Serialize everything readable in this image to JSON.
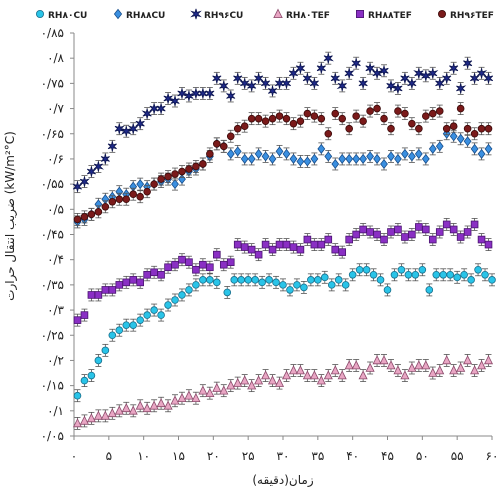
{
  "chart_data": {
    "type": "scatter",
    "xlabel": "زمان(دقیقه)",
    "ylabel": "ضریب انتقال حرارت (kW/m²°C)",
    "xlim": [
      0,
      60
    ],
    "ylim": [
      0.05,
      0.85
    ],
    "x_ticks": [
      0,
      5,
      10,
      15,
      20,
      25,
      30,
      35,
      40,
      45,
      50,
      55,
      60
    ],
    "x_tick_labels": [
      "۰",
      "۵",
      "۱۰",
      "۱۵",
      "۲۰",
      "۲۵",
      "۳۰",
      "۳۵",
      "۴۰",
      "۴۵",
      "۵۰",
      "۵۵",
      "۶۰"
    ],
    "y_ticks": [
      0.05,
      0.1,
      0.15,
      0.2,
      0.25,
      0.3,
      0.35,
      0.4,
      0.45,
      0.5,
      0.55,
      0.6,
      0.65,
      0.7,
      0.75,
      0.8,
      0.85
    ],
    "y_tick_labels": [
      "۰/۰۵",
      "۰/۱",
      "۰/۱۵",
      "۰/۲",
      "۰/۲۵",
      "۰/۳",
      "۰/۳۵",
      "۰/۴",
      "۰/۴۵",
      "۰/۵",
      "۰/۵۵",
      "۰/۶",
      "۰/۶۵",
      "۰/۷",
      "۰/۷۵",
      "۰/۸",
      "۰/۸۵"
    ],
    "legend_position": "top",
    "grid": false,
    "error_bars": true,
    "series": [
      {
        "name": "RH۸۰CU",
        "marker": "circle",
        "color": "#29c4e8",
        "stroke": "#1a6f8c",
        "x": [
          0.5,
          1.5,
          2.5,
          3.5,
          4.5,
          5.5,
          6.5,
          7.5,
          8.5,
          9.5,
          10.5,
          11.5,
          12.5,
          13.5,
          14.5,
          15.5,
          16.5,
          17.5,
          18.5,
          19.5,
          20.5,
          22,
          23,
          24,
          25,
          26,
          27,
          28,
          29,
          30,
          31,
          32,
          33,
          34,
          35,
          36,
          37,
          38,
          39,
          40,
          41,
          42,
          43,
          44,
          45,
          46,
          47,
          48,
          49,
          50,
          51,
          52,
          53,
          54,
          55,
          56,
          57,
          58,
          59,
          60
        ],
        "y": [
          0.13,
          0.16,
          0.17,
          0.2,
          0.22,
          0.25,
          0.26,
          0.27,
          0.27,
          0.28,
          0.29,
          0.3,
          0.29,
          0.31,
          0.32,
          0.33,
          0.34,
          0.35,
          0.36,
          0.36,
          0.355,
          0.335,
          0.36,
          0.36,
          0.36,
          0.36,
          0.355,
          0.36,
          0.355,
          0.35,
          0.34,
          0.35,
          0.345,
          0.36,
          0.36,
          0.365,
          0.35,
          0.36,
          0.35,
          0.37,
          0.38,
          0.38,
          0.37,
          0.36,
          0.34,
          0.37,
          0.38,
          0.37,
          0.37,
          0.38,
          0.34,
          0.37,
          0.37,
          0.37,
          0.365,
          0.37,
          0.36,
          0.38,
          0.37,
          0.36
        ]
      },
      {
        "name": "RH۸۸CU",
        "marker": "diamond",
        "color": "#3a8fe0",
        "stroke": "#1a4f8c",
        "x": [
          0.5,
          1.5,
          2.5,
          3.5,
          4.5,
          5.5,
          6.5,
          7.5,
          8.5,
          9.5,
          10.5,
          11.5,
          12.5,
          13.5,
          14.5,
          15.5,
          16.5,
          17.5,
          18.5,
          19.5,
          20.5,
          21.5,
          22.5,
          23.5,
          24.5,
          25.5,
          26.5,
          27.5,
          28.5,
          29.5,
          30.5,
          31.5,
          32.5,
          33.5,
          34.5,
          35.5,
          36.5,
          37.5,
          38.5,
          39.5,
          40.5,
          41.5,
          42.5,
          43.5,
          44.5,
          45.5,
          46.5,
          47.5,
          48.5,
          49.5,
          50.5,
          51.5,
          52.5,
          53.5,
          54.5,
          55.5,
          56.5,
          57.5,
          58.5,
          59.5
        ],
        "y": [
          0.475,
          0.48,
          0.49,
          0.51,
          0.52,
          0.525,
          0.535,
          0.53,
          0.545,
          0.55,
          0.545,
          0.55,
          0.555,
          0.56,
          0.55,
          0.56,
          0.575,
          0.58,
          0.59,
          0.605,
          0.63,
          0.625,
          0.61,
          0.615,
          0.6,
          0.6,
          0.61,
          0.605,
          0.6,
          0.615,
          0.61,
          0.6,
          0.595,
          0.595,
          0.6,
          0.62,
          0.605,
          0.59,
          0.6,
          0.6,
          0.6,
          0.6,
          0.605,
          0.6,
          0.59,
          0.605,
          0.6,
          0.61,
          0.605,
          0.61,
          0.6,
          0.62,
          0.625,
          0.65,
          0.645,
          0.64,
          0.635,
          0.62,
          0.61,
          0.62
        ]
      },
      {
        "name": "RH۹۶CU",
        "marker": "star",
        "color": "#1f2a8a",
        "stroke": "#0d1550",
        "x": [
          0.5,
          1.5,
          2.5,
          3.5,
          4.5,
          5.5,
          6.5,
          7.5,
          8.5,
          9.5,
          10.5,
          11.5,
          12.5,
          13.5,
          14.5,
          15.5,
          16.5,
          17.5,
          18.5,
          19.5,
          20.5,
          21.5,
          22.5,
          23.5,
          24.5,
          25.5,
          26.5,
          27.5,
          28.5,
          29.5,
          30.5,
          31.5,
          32.5,
          33.5,
          34.5,
          35.5,
          36.5,
          37.5,
          38.5,
          39.5,
          40.5,
          41.5,
          42.5,
          43.5,
          44.5,
          45.5,
          46.5,
          47.5,
          48.5,
          49.5,
          50.5,
          51.5,
          52.5,
          53.5,
          54.5,
          55.5,
          56.5,
          57.5,
          58.5,
          59.5
        ],
        "y": [
          0.545,
          0.555,
          0.575,
          0.585,
          0.6,
          0.625,
          0.66,
          0.655,
          0.66,
          0.67,
          0.69,
          0.7,
          0.7,
          0.72,
          0.715,
          0.73,
          0.725,
          0.73,
          0.73,
          0.73,
          0.76,
          0.745,
          0.725,
          0.76,
          0.75,
          0.745,
          0.76,
          0.75,
          0.735,
          0.75,
          0.75,
          0.77,
          0.78,
          0.76,
          0.75,
          0.78,
          0.8,
          0.76,
          0.745,
          0.77,
          0.79,
          0.75,
          0.78,
          0.77,
          0.775,
          0.745,
          0.74,
          0.76,
          0.75,
          0.77,
          0.765,
          0.77,
          0.75,
          0.76,
          0.78,
          0.74,
          0.79,
          0.76,
          0.77,
          0.76
        ]
      },
      {
        "name": "RH۸۰TEF",
        "marker": "triangle",
        "color": "#e9a6c4",
        "stroke": "#8a4a6a",
        "x": [
          0.5,
          1.5,
          2.5,
          3.5,
          4.5,
          5.5,
          6.5,
          7.5,
          8.5,
          9.5,
          10.5,
          11.5,
          12.5,
          13.5,
          14.5,
          15.5,
          16.5,
          17.5,
          18.5,
          19.5,
          20.5,
          21.5,
          22.5,
          23.5,
          24.5,
          25.5,
          26.5,
          27.5,
          28.5,
          29.5,
          30.5,
          31.5,
          32.5,
          33.5,
          34.5,
          35.5,
          36.5,
          37.5,
          38.5,
          39.5,
          40.5,
          41.5,
          42.5,
          43.5,
          44.5,
          45.5,
          46.5,
          47.5,
          48.5,
          49.5,
          50.5,
          51.5,
          52.5,
          53.5,
          54.5,
          55.5,
          56.5,
          57.5,
          58.5,
          59.5
        ],
        "y": [
          0.075,
          0.08,
          0.085,
          0.09,
          0.09,
          0.095,
          0.1,
          0.105,
          0.1,
          0.11,
          0.105,
          0.11,
          0.115,
          0.11,
          0.12,
          0.125,
          0.13,
          0.125,
          0.14,
          0.135,
          0.145,
          0.14,
          0.15,
          0.155,
          0.16,
          0.15,
          0.16,
          0.17,
          0.16,
          0.155,
          0.17,
          0.18,
          0.18,
          0.17,
          0.17,
          0.16,
          0.17,
          0.18,
          0.17,
          0.19,
          0.19,
          0.17,
          0.185,
          0.2,
          0.2,
          0.19,
          0.18,
          0.17,
          0.185,
          0.19,
          0.19,
          0.175,
          0.18,
          0.2,
          0.18,
          0.185,
          0.2,
          0.18,
          0.19,
          0.2
        ]
      },
      {
        "name": "RH۸۸TEF",
        "marker": "square",
        "color": "#8a2fc4",
        "stroke": "#4a1570",
        "x": [
          0.5,
          1.5,
          2.5,
          3.5,
          4.5,
          5.5,
          6.5,
          7.5,
          8.5,
          9.5,
          10.5,
          11.5,
          12.5,
          13.5,
          14.5,
          15.5,
          16.5,
          17.5,
          18.5,
          19.5,
          20.5,
          21.5,
          22.5,
          23.5,
          24.5,
          25.5,
          26.5,
          27.5,
          28.5,
          29.5,
          30.5,
          31.5,
          32.5,
          33.5,
          34.5,
          35.5,
          36.5,
          37.5,
          38.5,
          39.5,
          40.5,
          41.5,
          42.5,
          43.5,
          44.5,
          45.5,
          46.5,
          47.5,
          48.5,
          49.5,
          50.5,
          51.5,
          52.5,
          53.5,
          54.5,
          55.5,
          56.5,
          57.5,
          58.5,
          59.5
        ],
        "y": [
          0.28,
          0.29,
          0.33,
          0.33,
          0.34,
          0.34,
          0.35,
          0.355,
          0.36,
          0.355,
          0.37,
          0.375,
          0.37,
          0.385,
          0.39,
          0.4,
          0.395,
          0.38,
          0.39,
          0.385,
          0.41,
          0.39,
          0.395,
          0.43,
          0.425,
          0.42,
          0.41,
          0.43,
          0.42,
          0.43,
          0.43,
          0.425,
          0.42,
          0.44,
          0.43,
          0.43,
          0.44,
          0.42,
          0.415,
          0.44,
          0.45,
          0.46,
          0.455,
          0.45,
          0.44,
          0.455,
          0.46,
          0.445,
          0.45,
          0.465,
          0.46,
          0.44,
          0.455,
          0.47,
          0.46,
          0.445,
          0.455,
          0.47,
          0.44,
          0.43
        ]
      },
      {
        "name": "RH۹۶TEF",
        "marker": "circle",
        "color": "#7a1a1a",
        "stroke": "#3a0a0a",
        "x": [
          0.5,
          1.5,
          2.5,
          3.5,
          4.5,
          5.5,
          6.5,
          7.5,
          8.5,
          9.5,
          10.5,
          11.5,
          12.5,
          13.5,
          14.5,
          15.5,
          16.5,
          17.5,
          18.5,
          19.5,
          20.5,
          21.5,
          22.5,
          23.5,
          24.5,
          25.5,
          26.5,
          27.5,
          28.5,
          29.5,
          30.5,
          31.5,
          32.5,
          33.5,
          34.5,
          35.5,
          36.5,
          37.5,
          38.5,
          39.5,
          40.5,
          41.5,
          42.5,
          43.5,
          44.5,
          45.5,
          46.5,
          47.5,
          48.5,
          49.5,
          50.5,
          51.5,
          52.5,
          53.5,
          54.5,
          55.5,
          56.5,
          57.5,
          58.5,
          59.5
        ],
        "y": [
          0.48,
          0.485,
          0.49,
          0.495,
          0.505,
          0.515,
          0.52,
          0.52,
          0.53,
          0.525,
          0.535,
          0.55,
          0.56,
          0.565,
          0.57,
          0.575,
          0.58,
          0.585,
          0.59,
          0.61,
          0.63,
          0.625,
          0.645,
          0.66,
          0.665,
          0.68,
          0.68,
          0.675,
          0.68,
          0.685,
          0.68,
          0.67,
          0.675,
          0.69,
          0.685,
          0.68,
          0.65,
          0.69,
          0.68,
          0.66,
          0.685,
          0.675,
          0.695,
          0.7,
          0.68,
          0.66,
          0.695,
          0.69,
          0.67,
          0.66,
          0.685,
          0.69,
          0.695,
          0.66,
          0.665,
          0.7,
          0.66,
          0.65,
          0.66,
          0.66
        ]
      }
    ]
  }
}
